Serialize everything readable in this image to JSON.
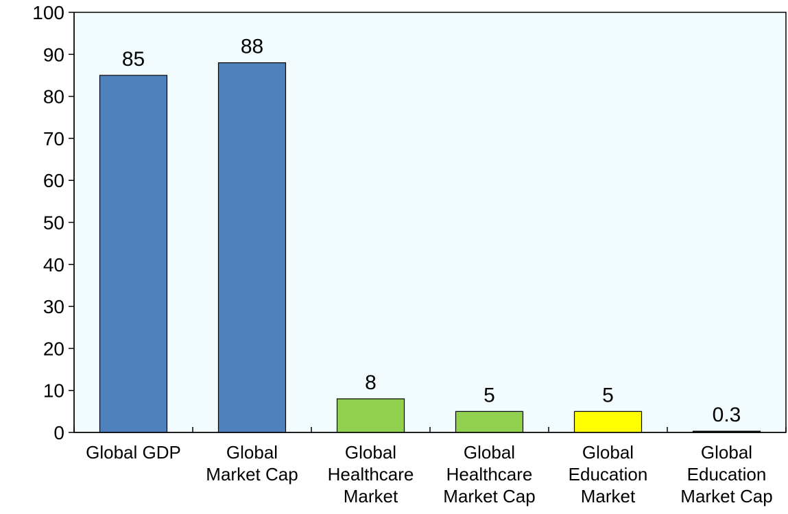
{
  "chart_data": {
    "type": "bar",
    "title": "",
    "xlabel": "",
    "ylabel": "",
    "ylim": [
      0,
      100
    ],
    "yticks": [
      0,
      10,
      20,
      30,
      40,
      50,
      60,
      70,
      80,
      90,
      100
    ],
    "grid": false,
    "legend": "none",
    "categories": [
      [
        "Global GDP"
      ],
      [
        "Global",
        "Market Cap"
      ],
      [
        "Global",
        "Healthcare",
        "Market"
      ],
      [
        "Global",
        "Healthcare",
        "Market Cap"
      ],
      [
        "Global",
        "Education",
        "Market"
      ],
      [
        "Global",
        "Education",
        "Market Cap"
      ]
    ],
    "values": [
      85,
      88,
      8,
      5,
      5,
      0.3
    ],
    "data_labels": [
      "85",
      "88",
      "8",
      "5",
      "5",
      "0.3"
    ],
    "bar_colors": [
      "#4f81bd",
      "#4f81bd",
      "#92d050",
      "#92d050",
      "#ffff00",
      "#1a1a1a"
    ],
    "plot_background": "#f2fcff"
  }
}
